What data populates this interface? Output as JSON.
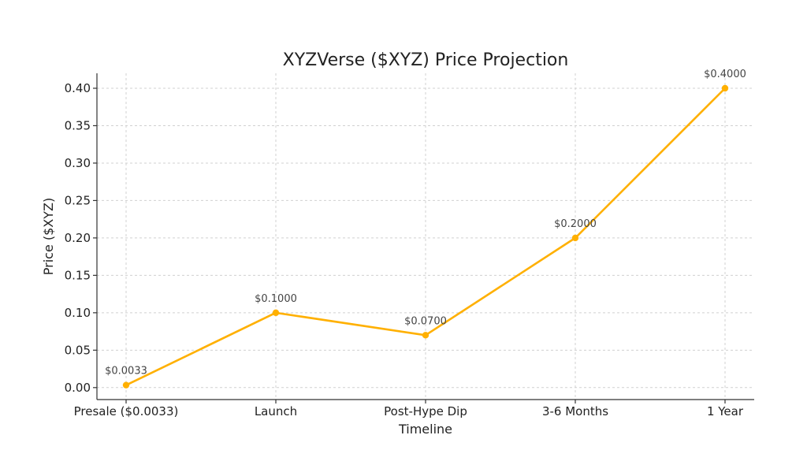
{
  "chart_data": {
    "type": "line",
    "title": "XYZVerse ($XYZ) Price Projection",
    "xlabel": "Timeline",
    "ylabel": "Price ($XYZ)",
    "categories": [
      "Presale ($0.0033)",
      "Launch",
      "Post-Hype Dip",
      "3-6 Months",
      "1 Year"
    ],
    "values": [
      0.0033,
      0.1,
      0.07,
      0.2,
      0.4
    ],
    "data_labels": [
      "$0.0033",
      "$0.1000",
      "$0.0700",
      "$0.2000",
      "$0.4000"
    ],
    "yticks": [
      0.0,
      0.05,
      0.1,
      0.15,
      0.2,
      0.25,
      0.3,
      0.35,
      0.4
    ],
    "ytick_labels": [
      "0.00",
      "0.05",
      "0.10",
      "0.15",
      "0.20",
      "0.25",
      "0.30",
      "0.35",
      "0.40"
    ],
    "ylim": [
      -0.016,
      0.42
    ],
    "grid": true,
    "line_color": "#FFB000",
    "marker_color": "#FFB000"
  }
}
